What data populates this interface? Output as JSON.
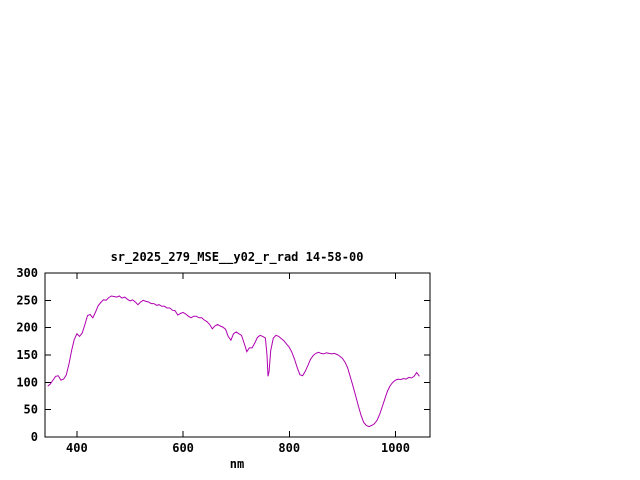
{
  "window": {
    "background_color": "#ffffff"
  },
  "chart_data": {
    "type": "line",
    "title": "sr_2025_279_MSE__y02_r_rad 14-58-00",
    "xlabel": "nm",
    "ylabel": "",
    "xlim": [
      340,
      1065
    ],
    "ylim": [
      0,
      300
    ],
    "x_ticks": [
      400,
      600,
      800,
      1000
    ],
    "y_ticks": [
      0,
      50,
      100,
      150,
      200,
      250,
      300
    ],
    "grid": false,
    "legend_position": "none",
    "axis_color": "#000000",
    "line_color": "#b000b0",
    "series": [
      {
        "points": [
          [
            345,
            93
          ],
          [
            350,
            97
          ],
          [
            355,
            104
          ],
          [
            360,
            111
          ],
          [
            365,
            112
          ],
          [
            370,
            104
          ],
          [
            375,
            106
          ],
          [
            380,
            113
          ],
          [
            385,
            133
          ],
          [
            390,
            158
          ],
          [
            395,
            178
          ],
          [
            400,
            189
          ],
          [
            405,
            184
          ],
          [
            410,
            190
          ],
          [
            415,
            205
          ],
          [
            420,
            222
          ],
          [
            425,
            224
          ],
          [
            430,
            218
          ],
          [
            435,
            228
          ],
          [
            440,
            240
          ],
          [
            445,
            246
          ],
          [
            450,
            251
          ],
          [
            455,
            250
          ],
          [
            460,
            255
          ],
          [
            465,
            258
          ],
          [
            470,
            257
          ],
          [
            475,
            256
          ],
          [
            480,
            258
          ],
          [
            485,
            254
          ],
          [
            490,
            256
          ],
          [
            495,
            252
          ],
          [
            500,
            249
          ],
          [
            505,
            251
          ],
          [
            510,
            247
          ],
          [
            515,
            242
          ],
          [
            520,
            247
          ],
          [
            525,
            250
          ],
          [
            530,
            248
          ],
          [
            535,
            247
          ],
          [
            540,
            244
          ],
          [
            545,
            244
          ],
          [
            550,
            241
          ],
          [
            555,
            242
          ],
          [
            560,
            239
          ],
          [
            565,
            239
          ],
          [
            570,
            236
          ],
          [
            575,
            236
          ],
          [
            580,
            232
          ],
          [
            585,
            231
          ],
          [
            590,
            223
          ],
          [
            595,
            226
          ],
          [
            600,
            228
          ],
          [
            605,
            225
          ],
          [
            610,
            221
          ],
          [
            615,
            218
          ],
          [
            620,
            221
          ],
          [
            625,
            221
          ],
          [
            630,
            218
          ],
          [
            635,
            218
          ],
          [
            640,
            214
          ],
          [
            645,
            211
          ],
          [
            650,
            206
          ],
          [
            655,
            198
          ],
          [
            660,
            203
          ],
          [
            665,
            206
          ],
          [
            670,
            203
          ],
          [
            675,
            201
          ],
          [
            680,
            197
          ],
          [
            685,
            184
          ],
          [
            690,
            177
          ],
          [
            695,
            189
          ],
          [
            700,
            192
          ],
          [
            705,
            189
          ],
          [
            710,
            186
          ],
          [
            715,
            172
          ],
          [
            720,
            156
          ],
          [
            725,
            163
          ],
          [
            730,
            163
          ],
          [
            735,
            172
          ],
          [
            740,
            182
          ],
          [
            745,
            186
          ],
          [
            750,
            184
          ],
          [
            755,
            181
          ],
          [
            758,
            150
          ],
          [
            760,
            111
          ],
          [
            762,
            120
          ],
          [
            765,
            158
          ],
          [
            770,
            181
          ],
          [
            775,
            186
          ],
          [
            780,
            184
          ],
          [
            785,
            180
          ],
          [
            790,
            176
          ],
          [
            795,
            170
          ],
          [
            800,
            164
          ],
          [
            805,
            155
          ],
          [
            810,
            142
          ],
          [
            815,
            127
          ],
          [
            820,
            114
          ],
          [
            825,
            112
          ],
          [
            830,
            120
          ],
          [
            835,
            131
          ],
          [
            840,
            142
          ],
          [
            845,
            149
          ],
          [
            850,
            153
          ],
          [
            855,
            155
          ],
          [
            860,
            153
          ],
          [
            865,
            152
          ],
          [
            870,
            154
          ],
          [
            875,
            153
          ],
          [
            880,
            152
          ],
          [
            885,
            153
          ],
          [
            890,
            151
          ],
          [
            895,
            148
          ],
          [
            900,
            144
          ],
          [
            905,
            137
          ],
          [
            910,
            126
          ],
          [
            915,
            110
          ],
          [
            920,
            93
          ],
          [
            925,
            75
          ],
          [
            930,
            57
          ],
          [
            935,
            40
          ],
          [
            940,
            27
          ],
          [
            945,
            21
          ],
          [
            950,
            19
          ],
          [
            955,
            21
          ],
          [
            960,
            24
          ],
          [
            965,
            30
          ],
          [
            970,
            41
          ],
          [
            975,
            55
          ],
          [
            980,
            70
          ],
          [
            985,
            84
          ],
          [
            990,
            94
          ],
          [
            995,
            100
          ],
          [
            1000,
            104
          ],
          [
            1005,
            106
          ],
          [
            1010,
            105
          ],
          [
            1015,
            107
          ],
          [
            1020,
            106
          ],
          [
            1025,
            109
          ],
          [
            1030,
            108
          ],
          [
            1035,
            111
          ],
          [
            1040,
            118
          ],
          [
            1045,
            111
          ]
        ]
      }
    ]
  }
}
